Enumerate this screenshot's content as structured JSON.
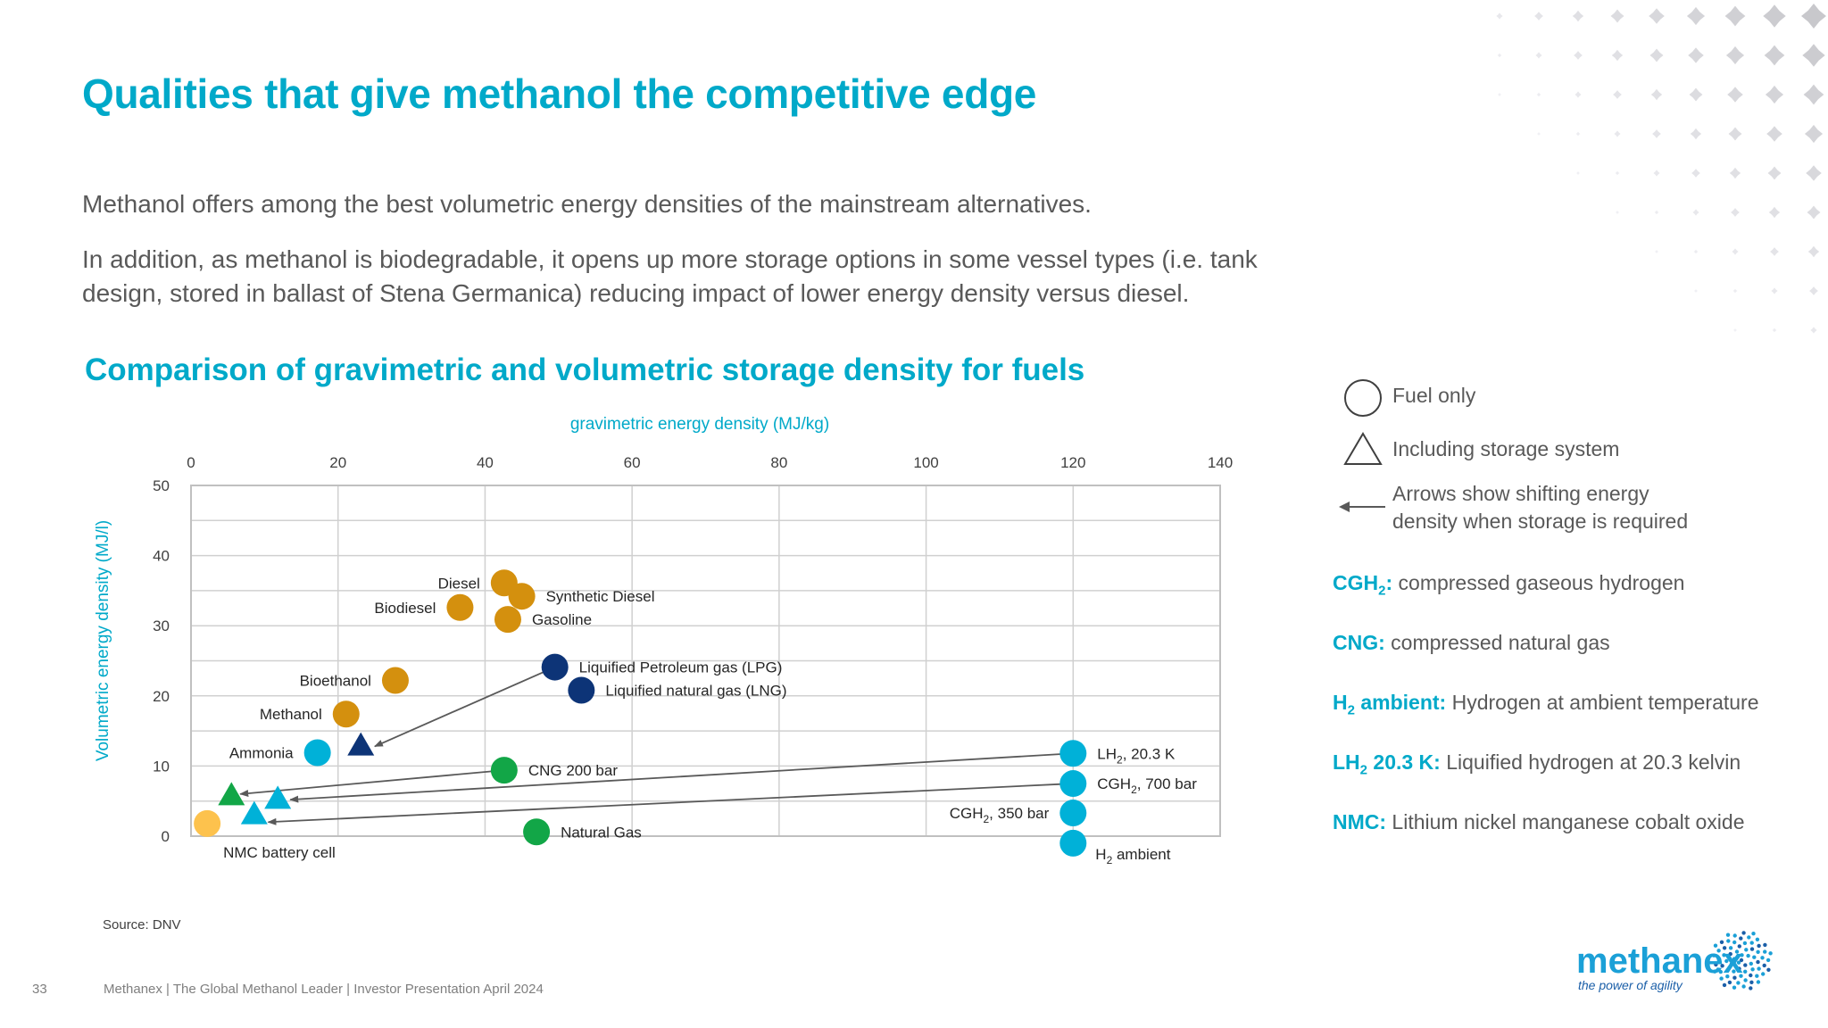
{
  "page": {
    "title": "Qualities that give methanol the competitive edge",
    "intro_1": "Methanol offers among the best volumetric energy densities of the mainstream alternatives.",
    "intro_2": "In addition, as methanol is biodegradable, it opens up more storage options in some vessel types (i.e. tank design, stored in ballast of Stena Germanica) reducing impact of lower energy density versus diesel.",
    "chart_heading": "Comparison of gravimetric and volumetric storage density for fuels",
    "source": "Source: DNV",
    "page_number": "33",
    "footer": "Methanex | The Global Methanol Leader | Investor Presentation April 2024"
  },
  "legend": {
    "fuel_only": "Fuel only",
    "incl_storage": "Including storage system",
    "arrows_line1": "Arrows show shifting energy",
    "arrows_line2": "density when storage is required"
  },
  "definitions": [
    {
      "abbr": "CGH",
      "sub": "2",
      "tail": ":",
      "text": " compressed gaseous hydrogen"
    },
    {
      "abbr": "CNG:",
      "sub": "",
      "tail": "",
      "text": " compressed natural  gas"
    },
    {
      "abbr": "H",
      "sub": "2",
      "tail": " ambient:",
      "text": " Hydrogen at ambient temperature"
    },
    {
      "abbr": "LH",
      "sub": "2",
      "tail": " 20.3 K:",
      "text": " Liquified hydrogen at 20.3 kelvin"
    },
    {
      "abbr": "NMC:",
      "sub": "",
      "tail": "",
      "text": " Lithium nickel manganese cobalt oxide"
    }
  ],
  "logo": {
    "name": "methanex",
    "tagline": "the power of agility"
  },
  "colors": {
    "accent": "#00a9c9",
    "orange": "#d4900e",
    "navy": "#0d3477",
    "cyan": "#00b1d8",
    "green": "#12a647",
    "yellow": "#fdc24d",
    "arrow": "#595959"
  },
  "chart_data": {
    "type": "scatter",
    "xlabel": "gravimetric energy density (MJ/kg)",
    "ylabel": "Volumetric energy density (MJ/l)",
    "xlim": [
      0,
      140
    ],
    "ylim": [
      0,
      50
    ],
    "x_ticks": [
      0,
      20,
      40,
      60,
      80,
      100,
      120,
      140
    ],
    "y_ticks": [
      0,
      10,
      20,
      30,
      40,
      50
    ],
    "grid": true,
    "x_axis_position": "top",
    "points": [
      {
        "label": "Diesel",
        "x": 42.6,
        "y": 36.1,
        "marker": "circle",
        "color": "orange",
        "label_side": "left"
      },
      {
        "label": "Synthetic Diesel",
        "x": 45.0,
        "y": 34.2,
        "marker": "circle",
        "color": "orange",
        "label_side": "right"
      },
      {
        "label": "Biodiesel",
        "x": 36.6,
        "y": 32.6,
        "marker": "circle",
        "color": "orange",
        "label_side": "left"
      },
      {
        "label": "Gasoline",
        "x": 43.1,
        "y": 30.9,
        "marker": "circle",
        "color": "orange",
        "label_side": "right"
      },
      {
        "label": "Liquified Petroleum gas (LPG)",
        "x": 49.5,
        "y": 24.1,
        "marker": "circle",
        "color": "navy",
        "label_side": "right"
      },
      {
        "label": "Liquified natural gas (LNG)",
        "x": 53.1,
        "y": 20.8,
        "marker": "circle",
        "color": "navy",
        "label_side": "right"
      },
      {
        "label": "Bioethanol",
        "x": 27.8,
        "y": 22.2,
        "marker": "circle",
        "color": "orange",
        "label_side": "left"
      },
      {
        "label": "Methanol",
        "x": 21.1,
        "y": 17.4,
        "marker": "circle",
        "color": "orange",
        "label_side": "left"
      },
      {
        "label": "Ammonia",
        "x": 17.2,
        "y": 11.9,
        "marker": "circle",
        "color": "cyan",
        "label_side": "left"
      },
      {
        "label": "CNG 200 bar",
        "x": 42.6,
        "y": 9.4,
        "marker": "circle",
        "color": "green",
        "label_side": "right"
      },
      {
        "label": "Natural Gas",
        "x": 47.0,
        "y": 0.6,
        "marker": "circle",
        "color": "green",
        "label_side": "right"
      },
      {
        "label": "NMC battery cell",
        "x": 2.2,
        "y": 1.8,
        "marker": "circle",
        "color": "yellow",
        "label_side": "below"
      },
      {
        "label": "LH2, 20.3 K",
        "x": 120.0,
        "y": 11.8,
        "marker": "circle",
        "color": "cyan",
        "label_side": "right"
      },
      {
        "label": "CGH2, 700 bar",
        "x": 120.0,
        "y": 7.5,
        "marker": "circle",
        "color": "cyan",
        "label_side": "right"
      },
      {
        "label": "CGH2, 350 bar",
        "x": 120.0,
        "y": 3.3,
        "marker": "circle",
        "color": "cyan",
        "label_side": "left"
      },
      {
        "label": "H2 ambient",
        "x": 120.0,
        "y": -1.0,
        "marker": "circle",
        "color": "cyan",
        "label_side": "below-right"
      },
      {
        "label": "",
        "x": 23.1,
        "y": 12.9,
        "marker": "triangle",
        "color": "navy"
      },
      {
        "label": "",
        "x": 5.5,
        "y": 5.8,
        "marker": "triangle",
        "color": "green"
      },
      {
        "label": "",
        "x": 11.8,
        "y": 5.3,
        "marker": "triangle",
        "color": "cyan"
      },
      {
        "label": "",
        "x": 8.6,
        "y": 3.1,
        "marker": "triangle",
        "color": "cyan"
      }
    ],
    "arrows": [
      {
        "from": [
          49.5,
          24.1
        ],
        "to": [
          25.0,
          12.8
        ]
      },
      {
        "from": [
          42.6,
          9.4
        ],
        "to": [
          6.7,
          6.0
        ]
      },
      {
        "from": [
          120.0,
          11.8
        ],
        "to": [
          13.5,
          5.2
        ]
      },
      {
        "from": [
          120.0,
          7.5
        ],
        "to": [
          10.5,
          2.0
        ]
      }
    ]
  }
}
